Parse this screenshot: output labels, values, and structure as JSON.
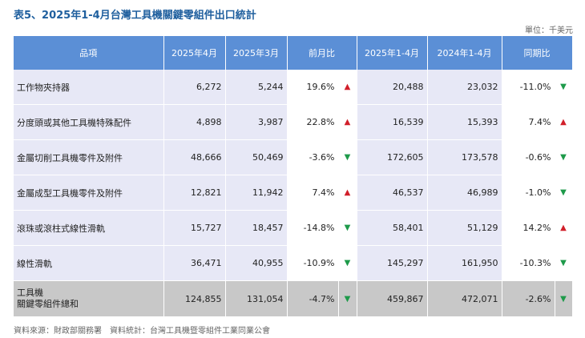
{
  "title": "表5、2025年1-4月台灣工具機關鍵零組件出口統計",
  "unit": "單位：千美元",
  "columns": [
    "品項",
    "2025年4月",
    "2025年3月",
    "前月比",
    "2025年1-4月",
    "2024年1-4月",
    "同期比"
  ],
  "rows": [
    {
      "name": "工作物夾持器",
      "apr": "6,272",
      "mar": "5,244",
      "mom": "19.6%",
      "mom_dir": "up",
      "ytd25": "20,488",
      "ytd24": "23,032",
      "yoy": "-11.0%",
      "yoy_dir": "down"
    },
    {
      "name": "分度頭或其他工具機特殊配件",
      "apr": "4,898",
      "mar": "3,987",
      "mom": "22.8%",
      "mom_dir": "up",
      "ytd25": "16,539",
      "ytd24": "15,393",
      "yoy": "7.4%",
      "yoy_dir": "up"
    },
    {
      "name": "金屬切削工具機零件及附件",
      "apr": "48,666",
      "mar": "50,469",
      "mom": "-3.6%",
      "mom_dir": "down",
      "ytd25": "172,605",
      "ytd24": "173,578",
      "yoy": "-0.6%",
      "yoy_dir": "down"
    },
    {
      "name": "金屬成型工具機零件及附件",
      "apr": "12,821",
      "mar": "11,942",
      "mom": "7.4%",
      "mom_dir": "up",
      "ytd25": "46,537",
      "ytd24": "46,989",
      "yoy": "-1.0%",
      "yoy_dir": "down"
    },
    {
      "name": "滾珠或滾柱式線性滑軌",
      "apr": "15,727",
      "mar": "18,457",
      "mom": "-14.8%",
      "mom_dir": "down",
      "ytd25": "58,401",
      "ytd24": "51,129",
      "yoy": "14.2%",
      "yoy_dir": "up"
    },
    {
      "name": "線性滑軌",
      "apr": "36,471",
      "mar": "40,955",
      "mom": "-10.9%",
      "mom_dir": "down",
      "ytd25": "145,297",
      "ytd24": "161,950",
      "yoy": "-10.3%",
      "yoy_dir": "down"
    }
  ],
  "total": {
    "name_line1": "工具機",
    "name_line2": "關鍵零組件總和",
    "apr": "124,855",
    "mar": "131,054",
    "mom": "-4.7%",
    "mom_dir": "down",
    "ytd25": "459,867",
    "ytd24": "472,071",
    "yoy": "-2.6%",
    "yoy_dir": "down"
  },
  "footer": "資料來源：財政部關務署　資料統計：台灣工具機暨零組件工業同業公會",
  "colors": {
    "header": "#5b8fd6",
    "row": "#e7e8f6",
    "total": "#c8c8c8",
    "up": "#d11f2a",
    "down": "#1e9a4a",
    "title": "#1f5f9e"
  }
}
